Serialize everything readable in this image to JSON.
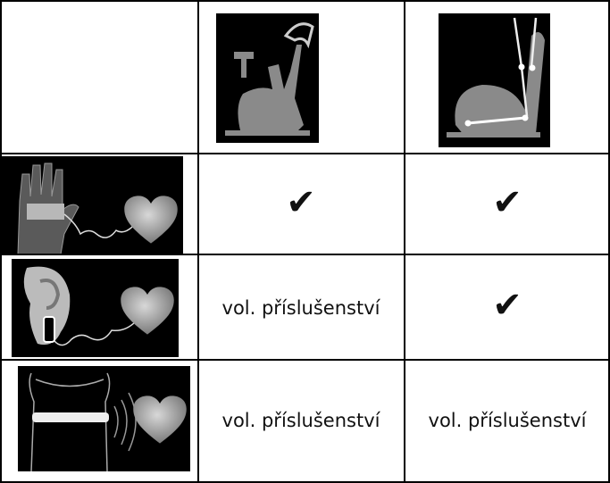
{
  "table": {
    "rows": [
      {
        "cells": [
          "✔",
          "✔"
        ]
      },
      {
        "cells": [
          "vol. příslušenství",
          "✔"
        ]
      },
      {
        "cells": [
          "vol. příslušenství",
          "vol. příslušenství"
        ]
      }
    ]
  }
}
